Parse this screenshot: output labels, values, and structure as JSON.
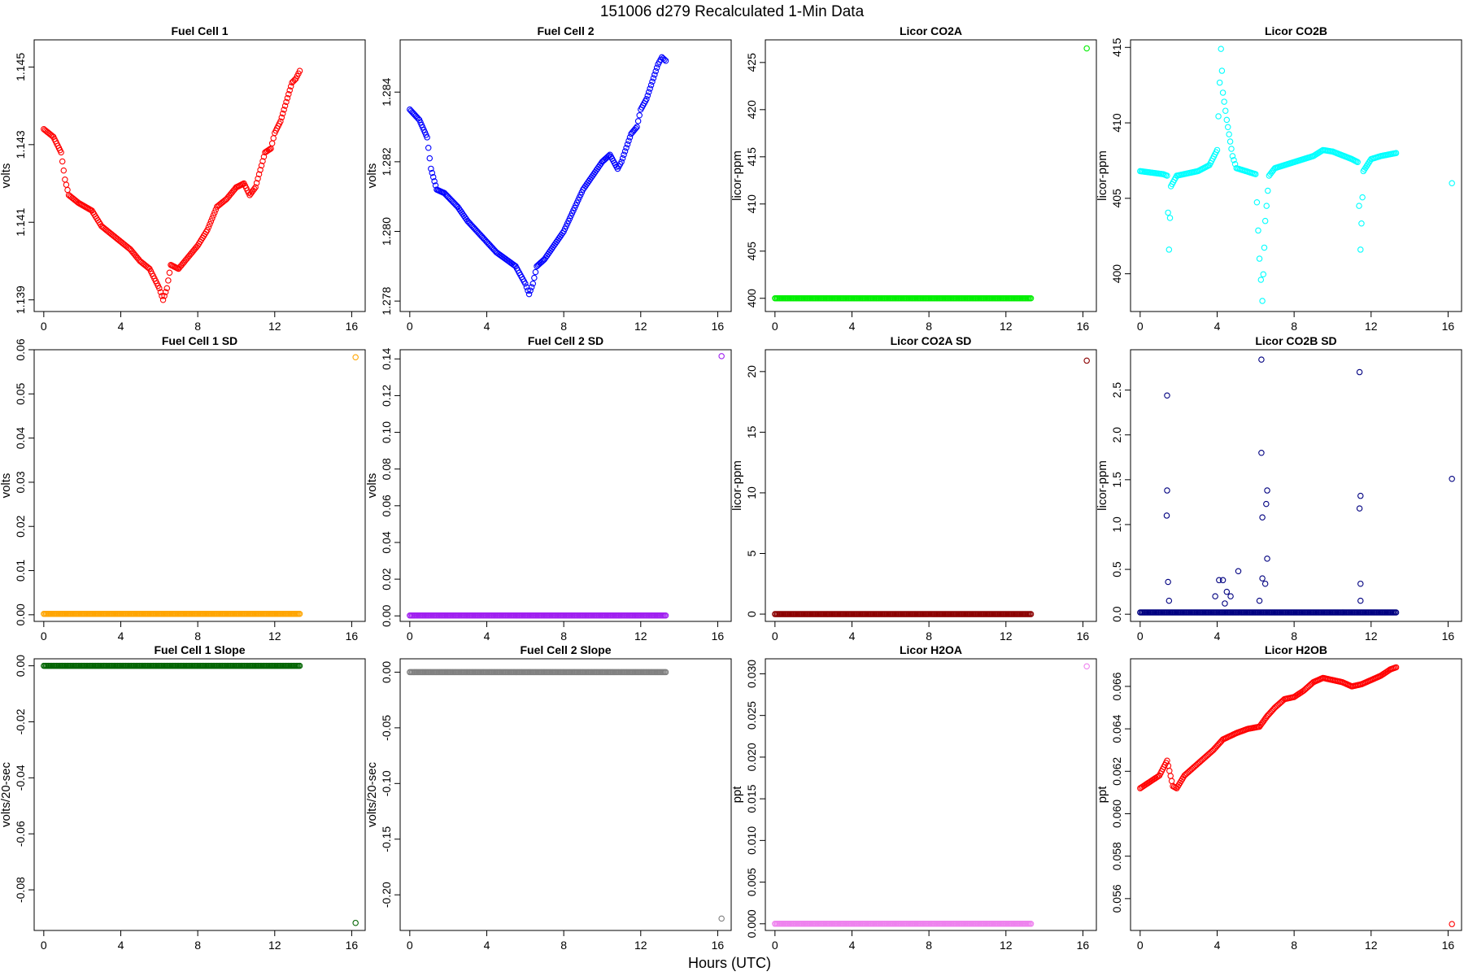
{
  "figure": {
    "title": "151006   d279   Recalculated 1-Min Data",
    "xlabel": "Hours (UTC)"
  },
  "chart_data": [
    {
      "type": "scatter",
      "title": "Fuel Cell 1",
      "ylabel": "volts",
      "color": "#ff0000",
      "xlim": [
        -0.5,
        16.7
      ],
      "ylim": [
        1.1387,
        1.1457
      ],
      "xticks": [
        0,
        4,
        8,
        12,
        16
      ],
      "xtick_labels": [
        "0",
        "4",
        "8",
        "12",
        "16"
      ],
      "yticks": [
        1.139,
        1.141,
        1.143,
        1.145
      ],
      "ytick_labels": [
        "1.139",
        "1.141",
        "1.143",
        "1.145"
      ],
      "x": [
        0,
        0.5,
        0.9,
        1.1,
        1.3,
        1.8,
        2.5,
        3,
        3.5,
        4,
        4.5,
        5,
        5.5,
        6,
        6.2,
        6.4,
        6.6,
        7,
        7.5,
        8,
        8.5,
        9,
        9.5,
        10,
        10.4,
        10.7,
        11,
        11.5,
        11.8,
        12,
        12.3,
        12.6,
        12.9,
        13.1,
        13.3
      ],
      "y": [
        1.1434,
        1.1432,
        1.1428,
        1.1421,
        1.1417,
        1.1415,
        1.1413,
        1.1409,
        1.1407,
        1.1405,
        1.1403,
        1.14,
        1.1398,
        1.1393,
        1.139,
        1.1393,
        1.1399,
        1.1398,
        1.1401,
        1.1404,
        1.1408,
        1.1414,
        1.1416,
        1.1419,
        1.142,
        1.1417,
        1.1419,
        1.1428,
        1.1429,
        1.1433,
        1.1436,
        1.1441,
        1.1446,
        1.1447,
        1.1449
      ],
      "outliers": []
    },
    {
      "type": "scatter",
      "title": "Fuel Cell 2",
      "ylabel": "volts",
      "color": "#0000ff",
      "xlim": [
        -0.5,
        16.7
      ],
      "ylim": [
        1.2777,
        1.2855
      ],
      "xticks": [
        0,
        4,
        8,
        12,
        16
      ],
      "xtick_labels": [
        "0",
        "4",
        "8",
        "12",
        "16"
      ],
      "yticks": [
        1.278,
        1.28,
        1.282,
        1.284
      ],
      "ytick_labels": [
        "1.278",
        "1.280",
        "1.282",
        "1.284"
      ],
      "x": [
        0,
        0.5,
        0.9,
        1.1,
        1.4,
        1.8,
        2.5,
        3,
        3.5,
        4,
        4.5,
        5,
        5.5,
        6,
        6.2,
        6.4,
        6.6,
        7,
        7.5,
        8,
        8.5,
        9,
        9.5,
        10,
        10.4,
        10.8,
        11,
        11.5,
        11.8,
        12,
        12.3,
        12.6,
        12.9,
        13.1,
        13.3
      ],
      "y": [
        1.2835,
        1.2832,
        1.2827,
        1.2818,
        1.2812,
        1.2811,
        1.2807,
        1.2803,
        1.28,
        1.2797,
        1.2794,
        1.2792,
        1.279,
        1.2785,
        1.2782,
        1.2785,
        1.279,
        1.2792,
        1.2796,
        1.28,
        1.2806,
        1.2812,
        1.2816,
        1.282,
        1.2822,
        1.2818,
        1.282,
        1.2828,
        1.283,
        1.2835,
        1.2838,
        1.2843,
        1.2848,
        1.285,
        1.2849
      ],
      "outliers": []
    },
    {
      "type": "scatter",
      "title": "Licor CO2A",
      "ylabel": "licor-ppm",
      "color": "#00ee00",
      "xlim": [
        -0.5,
        16.7
      ],
      "ylim": [
        398.6,
        427.4
      ],
      "xticks": [
        0,
        4,
        8,
        12,
        16
      ],
      "xtick_labels": [
        "0",
        "4",
        "8",
        "12",
        "16"
      ],
      "yticks": [
        400,
        405,
        410,
        415,
        420,
        425
      ],
      "ytick_labels": [
        "400",
        "405",
        "410",
        "415",
        "420",
        "425"
      ],
      "x": [
        0,
        13.3
      ],
      "y": [
        400,
        400
      ],
      "outliers": [
        {
          "x": 16.2,
          "y": 426.5
        }
      ]
    },
    {
      "type": "scatter",
      "title": "Licor CO2B",
      "ylabel": "licor-ppm",
      "color": "#00ffff",
      "xlim": [
        -0.5,
        16.7
      ],
      "ylim": [
        397.5,
        415.5
      ],
      "xticks": [
        0,
        4,
        8,
        12,
        16
      ],
      "xtick_labels": [
        "0",
        "4",
        "8",
        "12",
        "16"
      ],
      "yticks": [
        400,
        405,
        410,
        415
      ],
      "ytick_labels": [
        "400",
        "405",
        "410",
        "415"
      ],
      "x": [
        0,
        1.2,
        1.4,
        1.5,
        1.6,
        1.9,
        3.0,
        3.6,
        4.0,
        4.2,
        4.3,
        4.5,
        4.8,
        5.0,
        5.5,
        6.0,
        6.2,
        6.35,
        6.5,
        6.7,
        7.0,
        8.0,
        9.0,
        9.5,
        10.0,
        11.0,
        11.3,
        11.45,
        11.6,
        12.0,
        12.5,
        13.3
      ],
      "y": [
        406.8,
        406.6,
        406.5,
        401.6,
        405.8,
        406.5,
        406.8,
        407.2,
        408.2,
        414.9,
        412.0,
        410.2,
        407.8,
        407.0,
        406.8,
        406.6,
        401.0,
        398.2,
        403.5,
        406.5,
        407.0,
        407.4,
        407.8,
        408.2,
        408.1,
        407.6,
        407.4,
        401.6,
        406.8,
        407.6,
        407.8,
        408.0
      ],
      "outliers": [
        {
          "x": 16.2,
          "y": 406.0
        }
      ]
    },
    {
      "type": "scatter",
      "title": "Fuel Cell 1 SD",
      "ylabel": "volts",
      "color": "#ffa500",
      "xlim": [
        -0.5,
        16.7
      ],
      "ylim": [
        -0.0015,
        0.06
      ],
      "xticks": [
        0,
        4,
        8,
        12,
        16
      ],
      "xtick_labels": [
        "0",
        "4",
        "8",
        "12",
        "16"
      ],
      "yticks": [
        0,
        0.01,
        0.02,
        0.03,
        0.04,
        0.05,
        0.06
      ],
      "ytick_labels": [
        "0.00",
        "0.01",
        "0.02",
        "0.03",
        "0.04",
        "0.05",
        "0.06"
      ],
      "x": [
        0,
        13.3
      ],
      "y": [
        0.0002,
        0.0002
      ],
      "outliers": [
        {
          "x": 16.2,
          "y": 0.0583
        }
      ]
    },
    {
      "type": "scatter",
      "title": "Fuel Cell 2 SD",
      "ylabel": "volts",
      "color": "#a020f0",
      "xlim": [
        -0.5,
        16.7
      ],
      "ylim": [
        -0.003,
        0.145
      ],
      "xticks": [
        0,
        4,
        8,
        12,
        16
      ],
      "xtick_labels": [
        "0",
        "4",
        "8",
        "12",
        "16"
      ],
      "yticks": [
        0,
        0.02,
        0.04,
        0.06,
        0.08,
        0.1,
        0.12,
        0.14
      ],
      "ytick_labels": [
        "0.00",
        "0.02",
        "0.04",
        "0.06",
        "0.08",
        "0.10",
        "0.12",
        "0.14"
      ],
      "x": [
        0,
        13.3
      ],
      "y": [
        0.0002,
        0.0002
      ],
      "outliers": [
        {
          "x": 16.2,
          "y": 0.1415
        }
      ]
    },
    {
      "type": "scatter",
      "title": "Licor CO2A SD",
      "ylabel": "licor-ppm",
      "color": "#8b0000",
      "xlim": [
        -0.5,
        16.7
      ],
      "ylim": [
        -0.6,
        21.8
      ],
      "xticks": [
        0,
        4,
        8,
        12,
        16
      ],
      "xtick_labels": [
        "0",
        "4",
        "8",
        "12",
        "16"
      ],
      "yticks": [
        0,
        5,
        10,
        15,
        20
      ],
      "ytick_labels": [
        "0",
        "5",
        "10",
        "15",
        "20"
      ],
      "x": [
        0,
        13.3
      ],
      "y": [
        0,
        0
      ],
      "outliers": [
        {
          "x": 16.2,
          "y": 20.9
        }
      ]
    },
    {
      "type": "scatter",
      "title": "Licor CO2B SD",
      "ylabel": "licor-ppm",
      "color": "#000080",
      "xlim": [
        -0.5,
        16.7
      ],
      "ylim": [
        -0.08,
        2.95
      ],
      "xticks": [
        0,
        4,
        8,
        12,
        16
      ],
      "xtick_labels": [
        "0",
        "4",
        "8",
        "12",
        "16"
      ],
      "yticks": [
        0,
        0.5,
        1.0,
        1.5,
        2.0,
        2.5
      ],
      "ytick_labels": [
        "0.0",
        "0.5",
        "1.0",
        "1.5",
        "2.0",
        "2.5"
      ],
      "x": [
        0,
        13.3
      ],
      "y": [
        0.02,
        0.02
      ],
      "outliers": [
        {
          "x": 1.4,
          "y": 2.44
        },
        {
          "x": 1.4,
          "y": 1.38
        },
        {
          "x": 1.38,
          "y": 1.1
        },
        {
          "x": 1.45,
          "y": 0.36
        },
        {
          "x": 1.5,
          "y": 0.15
        },
        {
          "x": 3.9,
          "y": 0.2
        },
        {
          "x": 4.1,
          "y": 0.38
        },
        {
          "x": 4.3,
          "y": 0.38
        },
        {
          "x": 4.5,
          "y": 0.25
        },
        {
          "x": 4.7,
          "y": 0.2
        },
        {
          "x": 4.4,
          "y": 0.12
        },
        {
          "x": 5.1,
          "y": 0.48
        },
        {
          "x": 6.3,
          "y": 2.84
        },
        {
          "x": 6.3,
          "y": 1.8
        },
        {
          "x": 6.35,
          "y": 1.08
        },
        {
          "x": 6.6,
          "y": 1.38
        },
        {
          "x": 6.55,
          "y": 1.23
        },
        {
          "x": 6.6,
          "y": 0.62
        },
        {
          "x": 6.35,
          "y": 0.4
        },
        {
          "x": 6.5,
          "y": 0.34
        },
        {
          "x": 6.2,
          "y": 0.15
        },
        {
          "x": 11.4,
          "y": 2.7
        },
        {
          "x": 11.45,
          "y": 1.32
        },
        {
          "x": 11.4,
          "y": 1.18
        },
        {
          "x": 11.45,
          "y": 0.34
        },
        {
          "x": 11.45,
          "y": 0.15
        },
        {
          "x": 16.2,
          "y": 1.51
        }
      ]
    },
    {
      "type": "scatter",
      "title": "Fuel Cell 1 Slope",
      "ylabel": "volts/20-sec",
      "color": "#006400",
      "xlim": [
        -0.5,
        16.7
      ],
      "ylim": [
        -0.0945,
        0.0025
      ],
      "xticks": [
        0,
        4,
        8,
        12,
        16
      ],
      "xtick_labels": [
        "0",
        "4",
        "8",
        "12",
        "16"
      ],
      "yticks": [
        -0.08,
        -0.06,
        -0.04,
        -0.02,
        0
      ],
      "ytick_labels": [
        "-0.08",
        "-0.06",
        "-0.04",
        "-0.02",
        "0.00"
      ],
      "x": [
        0,
        13.3
      ],
      "y": [
        0,
        0
      ],
      "outliers": [
        {
          "x": 16.2,
          "y": -0.0918
        }
      ]
    },
    {
      "type": "scatter",
      "title": "Fuel Cell 2 Slope",
      "ylabel": "volts/20-sec",
      "color": "#808080",
      "xlim": [
        -0.5,
        16.7
      ],
      "ylim": [
        -0.232,
        0.012
      ],
      "xticks": [
        0,
        4,
        8,
        12,
        16
      ],
      "xtick_labels": [
        "0",
        "4",
        "8",
        "12",
        "16"
      ],
      "yticks": [
        -0.2,
        -0.15,
        -0.1,
        -0.05,
        0
      ],
      "ytick_labels": [
        "-0.20",
        "-0.15",
        "-0.10",
        "-0.05",
        "0.00"
      ],
      "x": [
        0,
        13.3
      ],
      "y": [
        0,
        0
      ],
      "outliers": [
        {
          "x": 16.2,
          "y": -0.2213
        }
      ]
    },
    {
      "type": "scatter",
      "title": "Licor H2OA",
      "ylabel": "ppt",
      "color": "#ee82ee",
      "xlim": [
        -0.5,
        16.7
      ],
      "ylim": [
        -0.0008,
        0.0318
      ],
      "xticks": [
        0,
        4,
        8,
        12,
        16
      ],
      "xtick_labels": [
        "0",
        "4",
        "8",
        "12",
        "16"
      ],
      "yticks": [
        0,
        0.005,
        0.01,
        0.015,
        0.02,
        0.025,
        0.03
      ],
      "ytick_labels": [
        "0.000",
        "0.005",
        "0.010",
        "0.015",
        "0.020",
        "0.025",
        "0.030"
      ],
      "x": [
        0,
        13.3
      ],
      "y": [
        0,
        0
      ],
      "outliers": [
        {
          "x": 16.2,
          "y": 0.0309
        }
      ]
    },
    {
      "type": "scatter",
      "title": "Licor H2OB",
      "ylabel": "ppt",
      "color": "#ff0000",
      "xlim": [
        -0.5,
        16.7
      ],
      "ylim": [
        0.0545,
        0.0673
      ],
      "xticks": [
        0,
        4,
        8,
        12,
        16
      ],
      "xtick_labels": [
        "0",
        "4",
        "8",
        "12",
        "16"
      ],
      "yticks": [
        0.056,
        0.058,
        0.06,
        0.062,
        0.064,
        0.066
      ],
      "ytick_labels": [
        "0.056",
        "0.058",
        "0.060",
        "0.062",
        "0.064",
        "0.066"
      ],
      "x": [
        0,
        0.5,
        1.0,
        1.4,
        1.7,
        1.9,
        2.3,
        2.8,
        3.3,
        3.8,
        4.3,
        5.0,
        5.6,
        6.2,
        6.6,
        7.0,
        7.5,
        8.0,
        8.5,
        9.0,
        9.5,
        10.0,
        10.5,
        11.0,
        11.5,
        12.0,
        12.5,
        13.0,
        13.3
      ],
      "y": [
        0.0612,
        0.0615,
        0.0618,
        0.0625,
        0.0613,
        0.0612,
        0.0618,
        0.0622,
        0.0626,
        0.063,
        0.0635,
        0.0638,
        0.064,
        0.0641,
        0.0646,
        0.065,
        0.0654,
        0.0655,
        0.0658,
        0.0662,
        0.0664,
        0.0663,
        0.0662,
        0.066,
        0.0661,
        0.0663,
        0.0665,
        0.0668,
        0.0669
      ],
      "outliers": [
        {
          "x": 16.2,
          "y": 0.0548
        }
      ]
    }
  ]
}
